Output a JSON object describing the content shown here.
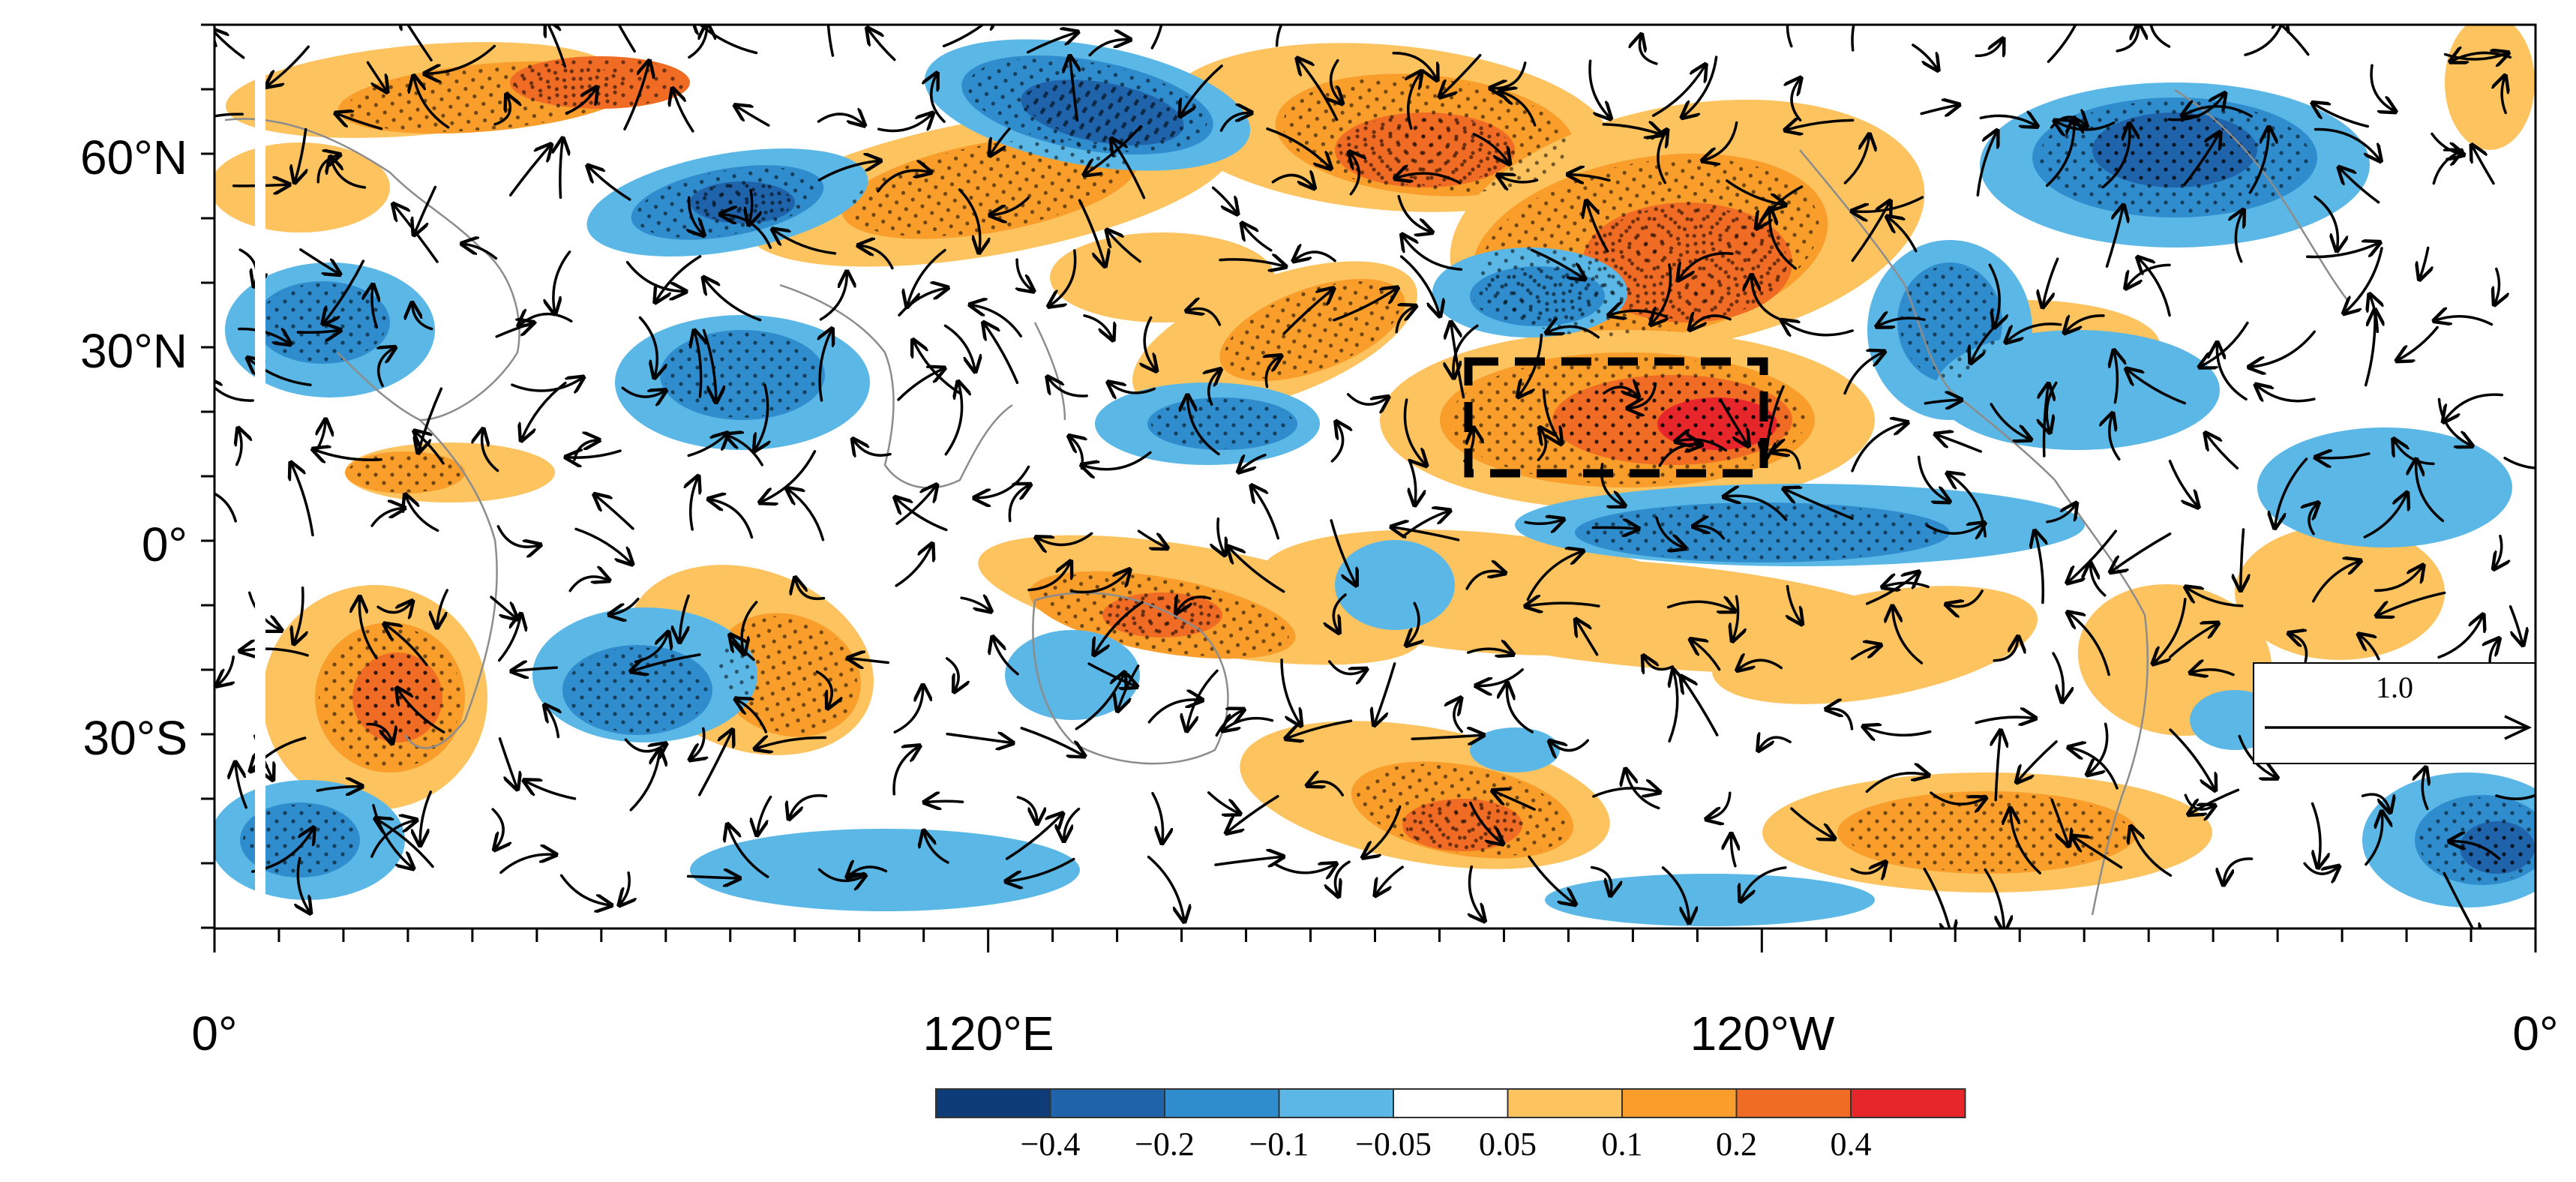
{
  "figure": {
    "lat_labels": [
      "60°N",
      "30°N",
      "0°",
      "30°S"
    ],
    "lon_labels": [
      "0°",
      "120°E",
      "120°W",
      "0°"
    ]
  },
  "colorbar": {
    "labels": [
      "−0.4",
      "−0.2",
      "−0.1",
      "−0.05",
      "0.05",
      "0.1",
      "0.2",
      "0.4"
    ],
    "colors": [
      "#0d3c78",
      "#1f63ab",
      "#2f8ccd",
      "#5bb8e6",
      "#ffffff",
      "#fdc35f",
      "#f99e2a",
      "#f06b24",
      "#e6262b"
    ]
  },
  "reference_vector": {
    "label": "1.0"
  },
  "map_features": {
    "boxed_region": "dashed box over the subtropical northeast Pacific",
    "stippling": "dots over shaded areas",
    "vectors": "black streamline arrows",
    "coastlines": "thin grey continental outlines"
  }
}
